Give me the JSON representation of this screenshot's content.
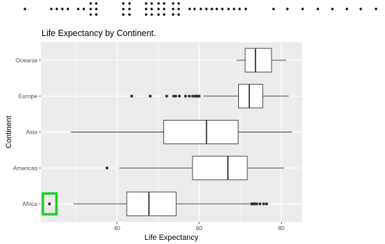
{
  "chart_data": {
    "type": "boxplot",
    "orientation": "horizontal",
    "title": "Life Expectancy by Continent.",
    "xlabel": "Life Expectancy",
    "ylabel": "Continent",
    "xlim": [
      21.5,
      85
    ],
    "x_ticks": [
      40,
      60,
      80
    ],
    "grid": true,
    "panel_color": "#ebebeb",
    "box_fill": "#ffffff",
    "categories": [
      "Africa",
      "Americas",
      "Asia",
      "Europe",
      "Oceania"
    ],
    "boxes": [
      {
        "category": "Africa",
        "whisker_low": 29.5,
        "q1": 42.4,
        "median": 47.8,
        "q3": 54.4,
        "whisker_high": 72.5,
        "outliers": [
          23.6,
          72.8,
          73.0,
          73.3,
          73.6,
          74.0,
          74.8,
          75.7,
          76.4
        ]
      },
      {
        "category": "Americas",
        "whisker_low": 40.6,
        "q1": 58.4,
        "median": 67.0,
        "q3": 71.7,
        "whisker_high": 80.6,
        "outliers": [
          37.6
        ]
      },
      {
        "category": "Asia",
        "whisker_low": 28.8,
        "q1": 51.4,
        "median": 61.8,
        "q3": 69.5,
        "whisker_high": 82.6,
        "outliers": []
      },
      {
        "category": "Europe",
        "whisker_low": 61.0,
        "q1": 69.6,
        "median": 72.2,
        "q3": 75.5,
        "whisker_high": 81.8,
        "outliers": [
          43.6,
          48.1,
          52.1,
          53.8,
          54.3,
          55.2,
          56.7,
          57.6,
          58.4,
          59.0,
          59.3,
          59.6,
          60.0
        ]
      },
      {
        "category": "Oceania",
        "whisker_low": 69.1,
        "q1": 71.2,
        "median": 73.7,
        "q3": 77.6,
        "whisker_high": 81.2,
        "outliers": []
      }
    ],
    "highlight": {
      "category": "Africa",
      "x_range": [
        22.0,
        25.3
      ],
      "color": "#22cc22"
    }
  }
}
